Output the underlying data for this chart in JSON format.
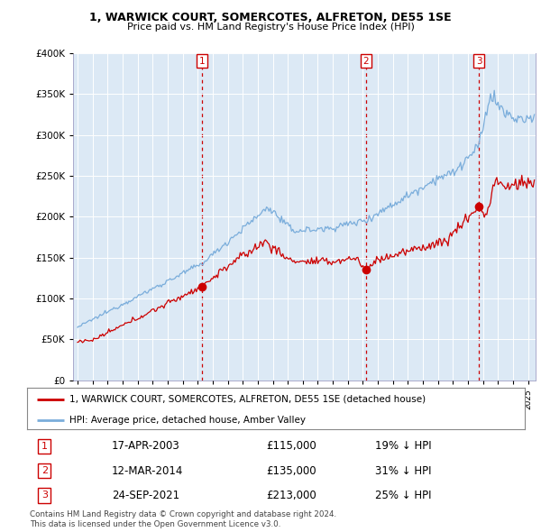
{
  "title1": "1, WARWICK COURT, SOMERCOTES, ALFRETON, DE55 1SE",
  "title2": "Price paid vs. HM Land Registry's House Price Index (HPI)",
  "background_color": "#dce9f5",
  "plot_bg_color": "#dce9f5",
  "red_line_color": "#cc0000",
  "blue_line_color": "#7aaddb",
  "sale_marker_color": "#cc0000",
  "dashed_line_color": "#cc0000",
  "sales": [
    {
      "date_num": 2003.29,
      "price": 115000,
      "label": "1"
    },
    {
      "date_num": 2014.19,
      "price": 135000,
      "label": "2"
    },
    {
      "date_num": 2021.73,
      "price": 213000,
      "label": "3"
    }
  ],
  "legend_entries": [
    "1, WARWICK COURT, SOMERCOTES, ALFRETON, DE55 1SE (detached house)",
    "HPI: Average price, detached house, Amber Valley"
  ],
  "table_rows": [
    {
      "num": "1",
      "date": "17-APR-2003",
      "price": "£115,000",
      "pct": "19% ↓ HPI"
    },
    {
      "num": "2",
      "date": "12-MAR-2014",
      "price": "£135,000",
      "pct": "31% ↓ HPI"
    },
    {
      "num": "3",
      "date": "24-SEP-2021",
      "price": "£213,000",
      "pct": "25% ↓ HPI"
    }
  ],
  "footer": "Contains HM Land Registry data © Crown copyright and database right 2024.\nThis data is licensed under the Open Government Licence v3.0.",
  "ylim": [
    0,
    400000
  ],
  "yticks": [
    0,
    50000,
    100000,
    150000,
    200000,
    250000,
    300000,
    350000,
    400000
  ],
  "ytick_labels": [
    "£0",
    "£50K",
    "£100K",
    "£150K",
    "£200K",
    "£250K",
    "£300K",
    "£350K",
    "£400K"
  ],
  "xlim_start": 1994.7,
  "xlim_end": 2025.5
}
